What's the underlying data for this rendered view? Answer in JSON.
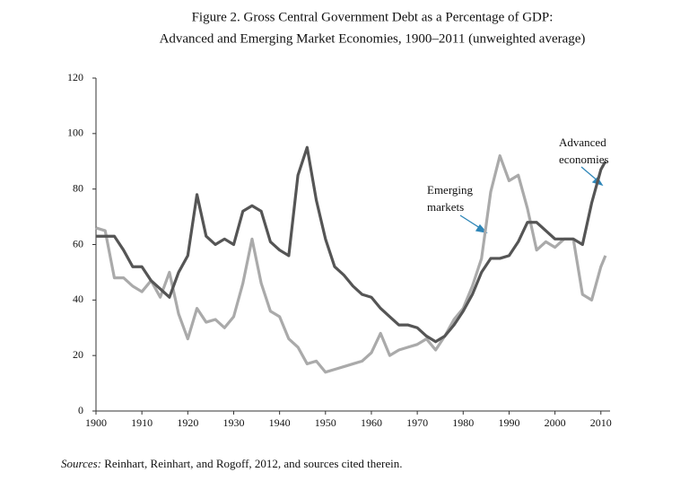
{
  "chart_data": {
    "type": "line",
    "title": "Figure 2. Gross Central Government Debt as a Percentage of GDP:",
    "subtitle": "Advanced and Emerging Market Economies, 1900–2011 (unweighted average)",
    "x": [
      1900,
      1902,
      1904,
      1906,
      1908,
      1910,
      1912,
      1914,
      1916,
      1918,
      1920,
      1922,
      1924,
      1926,
      1928,
      1930,
      1932,
      1934,
      1936,
      1938,
      1940,
      1942,
      1944,
      1946,
      1948,
      1950,
      1952,
      1954,
      1956,
      1958,
      1960,
      1962,
      1964,
      1966,
      1968,
      1970,
      1972,
      1974,
      1976,
      1978,
      1980,
      1982,
      1984,
      1986,
      1988,
      1990,
      1992,
      1994,
      1996,
      1998,
      2000,
      2002,
      2004,
      2006,
      2008,
      2010,
      2011
    ],
    "series": [
      {
        "name": "Advanced economies",
        "color": "#555555",
        "values": [
          63,
          63,
          63,
          58,
          52,
          52,
          47,
          44,
          41,
          50,
          56,
          78,
          63,
          60,
          62,
          60,
          72,
          74,
          72,
          61,
          58,
          56,
          85,
          95,
          76,
          62,
          52,
          49,
          45,
          42,
          41,
          37,
          34,
          31,
          31,
          30,
          27,
          25,
          27,
          31,
          36,
          42,
          50,
          55,
          55,
          56,
          61,
          68,
          68,
          65,
          62,
          62,
          62,
          60,
          75,
          87,
          90
        ]
      },
      {
        "name": "Emerging markets",
        "color": "#aaaaaa",
        "values": [
          66,
          65,
          48,
          48,
          45,
          43,
          47,
          41,
          50,
          35,
          26,
          37,
          32,
          33,
          30,
          34,
          46,
          62,
          46,
          36,
          34,
          26,
          23,
          17,
          18,
          14,
          15,
          16,
          17,
          18,
          21,
          28,
          20,
          22,
          23,
          24,
          26,
          22,
          27,
          33,
          37,
          45,
          55,
          79,
          92,
          83,
          85,
          73,
          58,
          61,
          59,
          62,
          62,
          42,
          40,
          52,
          56
        ]
      }
    ],
    "annotations": [
      {
        "lines": [
          "Advanced",
          "economies"
        ]
      },
      {
        "lines": [
          "Emerging",
          "markets"
        ]
      }
    ],
    "xlim": [
      1900,
      2012
    ],
    "xticks": [
      1900,
      1910,
      1920,
      1930,
      1940,
      1950,
      1960,
      1970,
      1980,
      1990,
      2000,
      2010
    ],
    "ylim": [
      0,
      120
    ],
    "yticks": [
      0,
      20,
      40,
      60,
      80,
      100,
      120
    ],
    "grid": false,
    "source_label": "Sources:",
    "source": "Reinhart, Reinhart, and Rogoff, 2012, and sources cited therein."
  }
}
